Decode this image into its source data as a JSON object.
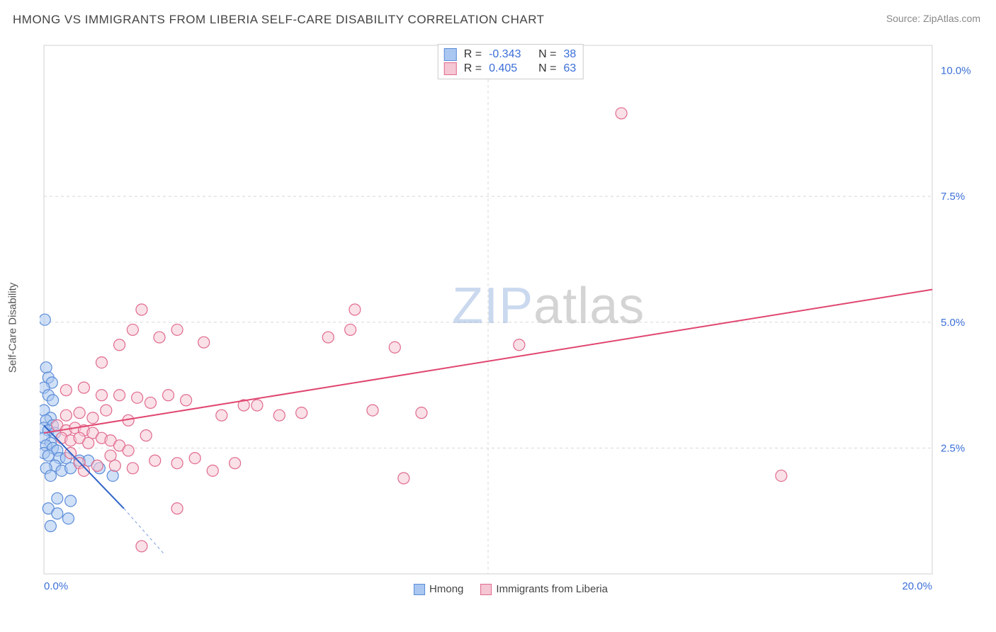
{
  "title": "HMONG VS IMMIGRANTS FROM LIBERIA SELF-CARE DISABILITY CORRELATION CHART",
  "source_label": "Source: ",
  "source_site": "ZipAtlas.com",
  "ylabel": "Self-Care Disability",
  "watermark_a": "ZIP",
  "watermark_b": "atlas",
  "chart": {
    "type": "scatter",
    "background_color": "#ffffff",
    "grid_color": "#d8d8d8",
    "axis_color": "#d0d0d0",
    "tick_label_color": "#3b6fd8",
    "tick_fontsize": 15,
    "xlim": [
      0,
      20
    ],
    "ylim": [
      0,
      10.5
    ],
    "xticks": [
      0,
      10,
      20
    ],
    "xtick_labels": [
      "0.0%",
      "",
      "20.0%"
    ],
    "yticks": [
      2.5,
      5.0,
      7.5,
      10.0
    ],
    "ytick_labels": [
      "2.5%",
      "5.0%",
      "7.5%",
      "10.0%"
    ],
    "xgrid_at": [
      10
    ],
    "ygrid_at": [
      2.5,
      5.0,
      7.5
    ],
    "marker_radius": 8,
    "marker_opacity": 0.55,
    "line_width": 2,
    "series": [
      {
        "name": "Hmong",
        "color_fill": "#a9c7f0",
        "color_stroke": "#5b8cd8",
        "line_color": "#2f63c8",
        "R": "-0.343",
        "N": "38",
        "trend": {
          "x1": 0,
          "y1": 2.95,
          "x2": 1.8,
          "y2": 1.3,
          "dash_ext_x2": 2.7,
          "dash_ext_y2": 0.4
        },
        "points": [
          [
            0.02,
            5.05
          ],
          [
            0.05,
            4.1
          ],
          [
            0.1,
            3.9
          ],
          [
            0.18,
            3.8
          ],
          [
            0.0,
            3.7
          ],
          [
            0.1,
            3.55
          ],
          [
            0.2,
            3.45
          ],
          [
            0.0,
            3.25
          ],
          [
            0.15,
            3.1
          ],
          [
            0.05,
            3.05
          ],
          [
            0.2,
            2.95
          ],
          [
            0.0,
            2.9
          ],
          [
            0.1,
            2.85
          ],
          [
            0.25,
            2.8
          ],
          [
            0.0,
            2.7
          ],
          [
            0.15,
            2.6
          ],
          [
            0.05,
            2.55
          ],
          [
            0.2,
            2.5
          ],
          [
            0.3,
            2.45
          ],
          [
            0.0,
            2.4
          ],
          [
            0.1,
            2.35
          ],
          [
            0.35,
            2.3
          ],
          [
            0.25,
            2.15
          ],
          [
            0.05,
            2.1
          ],
          [
            0.4,
            2.05
          ],
          [
            0.15,
            1.95
          ],
          [
            0.5,
            2.3
          ],
          [
            0.6,
            2.1
          ],
          [
            0.8,
            2.25
          ],
          [
            1.0,
            2.25
          ],
          [
            1.25,
            2.1
          ],
          [
            0.3,
            1.5
          ],
          [
            0.6,
            1.45
          ],
          [
            0.1,
            1.3
          ],
          [
            0.3,
            1.2
          ],
          [
            0.55,
            1.1
          ],
          [
            0.15,
            0.95
          ],
          [
            1.55,
            1.95
          ]
        ]
      },
      {
        "name": "Immigrants from Liberia",
        "color_fill": "#f5c6d3",
        "color_stroke": "#e06a8d",
        "line_color": "#e0466f",
        "R": "0.405",
        "N": "63",
        "trend": {
          "x1": 0,
          "y1": 2.8,
          "x2": 20,
          "y2": 5.65
        },
        "points": [
          [
            0.3,
            2.95
          ],
          [
            0.5,
            2.85
          ],
          [
            0.7,
            2.9
          ],
          [
            0.9,
            2.85
          ],
          [
            1.1,
            2.8
          ],
          [
            0.4,
            2.7
          ],
          [
            0.6,
            2.65
          ],
          [
            0.8,
            2.7
          ],
          [
            1.0,
            2.6
          ],
          [
            1.3,
            2.7
          ],
          [
            1.5,
            2.65
          ],
          [
            1.7,
            2.55
          ],
          [
            0.5,
            3.15
          ],
          [
            0.8,
            3.2
          ],
          [
            1.1,
            3.1
          ],
          [
            1.4,
            3.25
          ],
          [
            0.5,
            3.65
          ],
          [
            0.9,
            3.7
          ],
          [
            1.3,
            3.55
          ],
          [
            1.7,
            3.55
          ],
          [
            2.1,
            3.5
          ],
          [
            2.4,
            3.4
          ],
          [
            2.8,
            3.55
          ],
          [
            3.2,
            3.45
          ],
          [
            2.0,
            4.85
          ],
          [
            2.6,
            4.7
          ],
          [
            3.0,
            4.85
          ],
          [
            3.6,
            4.6
          ],
          [
            2.2,
            5.25
          ],
          [
            1.7,
            4.55
          ],
          [
            1.3,
            4.2
          ],
          [
            0.8,
            2.2
          ],
          [
            1.2,
            2.15
          ],
          [
            1.6,
            2.15
          ],
          [
            2.0,
            2.1
          ],
          [
            2.5,
            2.25
          ],
          [
            3.0,
            2.2
          ],
          [
            3.4,
            2.3
          ],
          [
            3.8,
            2.05
          ],
          [
            4.3,
            2.2
          ],
          [
            4.8,
            3.35
          ],
          [
            5.3,
            3.15
          ],
          [
            5.8,
            3.2
          ],
          [
            6.4,
            4.7
          ],
          [
            6.9,
            4.85
          ],
          [
            7.4,
            3.25
          ],
          [
            7.9,
            4.5
          ],
          [
            8.5,
            3.2
          ],
          [
            7.0,
            5.25
          ],
          [
            8.1,
            1.9
          ],
          [
            3.0,
            1.3
          ],
          [
            2.2,
            0.55
          ],
          [
            10.7,
            4.55
          ],
          [
            13.0,
            9.15
          ],
          [
            16.6,
            1.95
          ],
          [
            4.0,
            3.15
          ],
          [
            4.5,
            3.35
          ],
          [
            1.9,
            3.05
          ],
          [
            2.3,
            2.75
          ],
          [
            0.6,
            2.4
          ],
          [
            1.5,
            2.35
          ],
          [
            1.9,
            2.45
          ],
          [
            0.9,
            2.05
          ]
        ]
      }
    ]
  },
  "legend_top_rows": [
    {
      "swatch_fill": "#a9c7f0",
      "swatch_stroke": "#5b8cd8",
      "R": "-0.343",
      "N": "38"
    },
    {
      "swatch_fill": "#f5c6d3",
      "swatch_stroke": "#e06a8d",
      "R": " 0.405",
      "N": "63"
    }
  ],
  "legend_bottom": [
    {
      "swatch_fill": "#a9c7f0",
      "swatch_stroke": "#5b8cd8",
      "label": "Hmong"
    },
    {
      "swatch_fill": "#f5c6d3",
      "swatch_stroke": "#e06a8d",
      "label": "Immigrants from Liberia"
    }
  ]
}
